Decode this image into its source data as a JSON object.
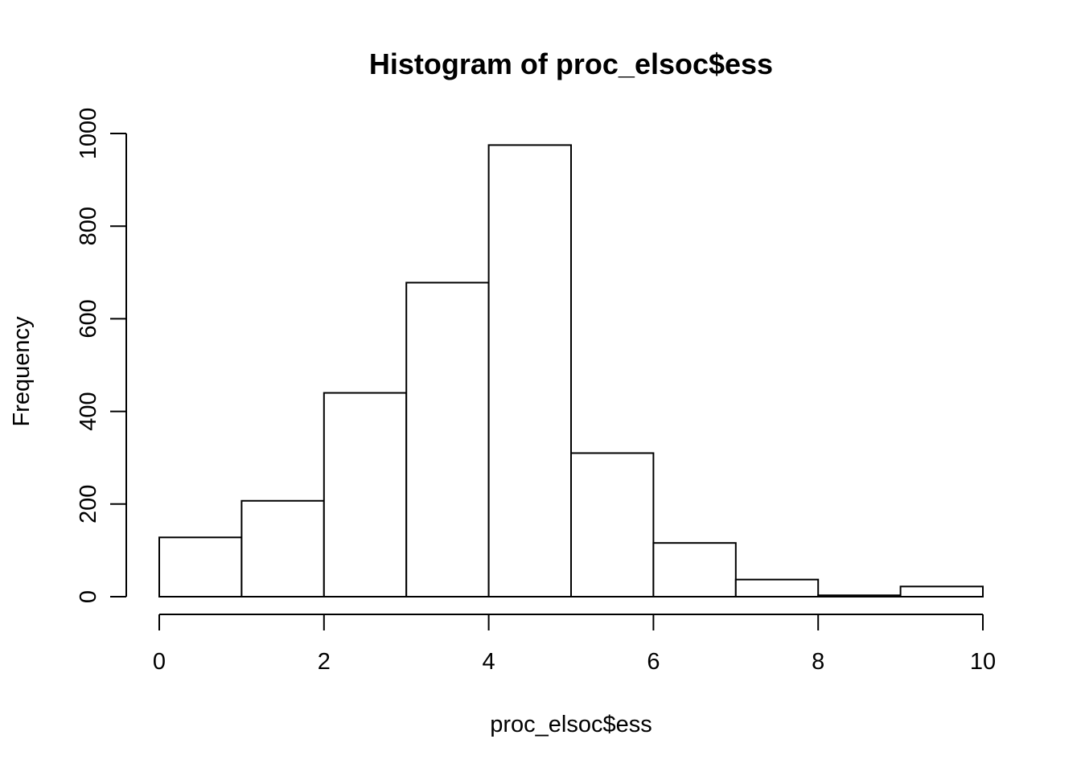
{
  "chart_data": {
    "type": "bar",
    "title": "Histogram of proc_elsoc$ess",
    "xlabel": "proc_elsoc$ess",
    "ylabel": "Frequency",
    "bins": [
      {
        "start": 0,
        "end": 1,
        "count": 128
      },
      {
        "start": 1,
        "end": 2,
        "count": 207
      },
      {
        "start": 2,
        "end": 3,
        "count": 440
      },
      {
        "start": 3,
        "end": 4,
        "count": 678
      },
      {
        "start": 4,
        "end": 5,
        "count": 975
      },
      {
        "start": 5,
        "end": 6,
        "count": 310
      },
      {
        "start": 6,
        "end": 7,
        "count": 116
      },
      {
        "start": 7,
        "end": 8,
        "count": 37
      },
      {
        "start": 8,
        "end": 9,
        "count": 3
      },
      {
        "start": 9,
        "end": 10,
        "count": 22
      }
    ],
    "xlim": [
      0,
      10
    ],
    "ylim": [
      0,
      1000
    ],
    "x_ticks": [
      "0",
      "2",
      "4",
      "6",
      "8",
      "10"
    ],
    "y_ticks": [
      "0",
      "200",
      "400",
      "600",
      "800",
      "1000"
    ],
    "grid": false,
    "bar_fill": "#ffffff",
    "bar_stroke": "#000000"
  }
}
